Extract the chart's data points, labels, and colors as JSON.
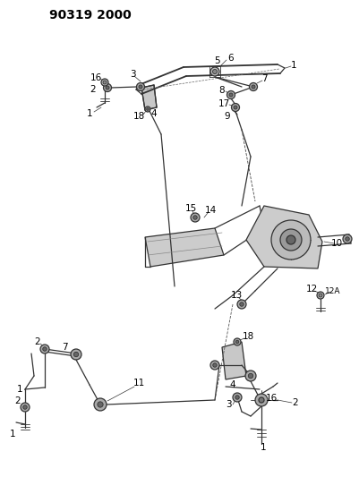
{
  "title": "90319 2000",
  "bg_color": "#ffffff",
  "fig_width": 4.01,
  "fig_height": 5.33,
  "dpi": 100,
  "line_color": "#333333",
  "part_label_fs": 7.5,
  "title_fs": 10
}
